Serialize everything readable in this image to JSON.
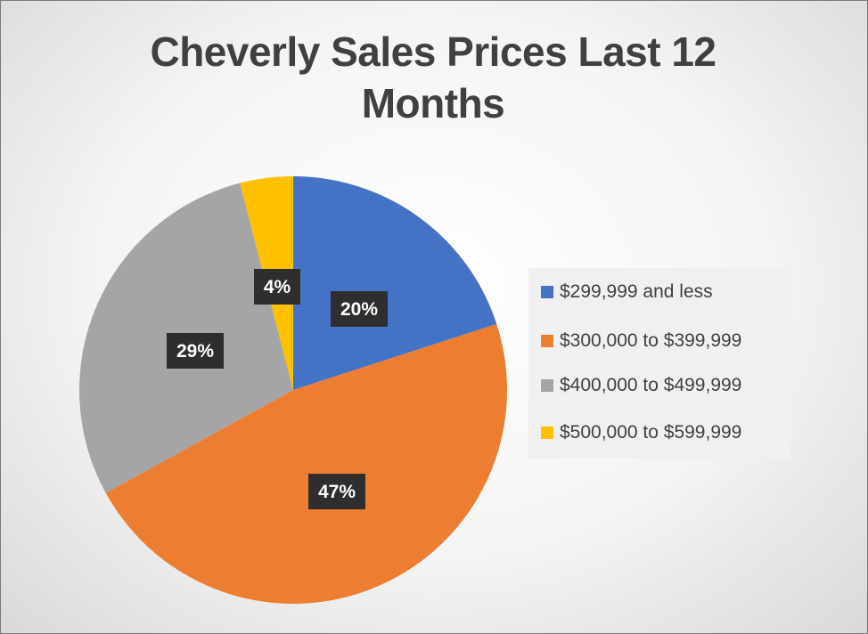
{
  "chart_data": {
    "type": "pie",
    "title": "Cheverly Sales Prices Last 12 Months",
    "categories": [
      "$299,999 and less",
      "$300,000 to $399,999",
      "$400,000 to $499,999",
      "$500,000 to $599,999"
    ],
    "values": [
      20,
      47,
      29,
      4
    ],
    "data_labels": [
      "20%",
      "47%",
      "29%",
      "4%"
    ],
    "colors": [
      "#4472C4",
      "#ED7D31",
      "#A5A5A5",
      "#FFC000"
    ],
    "legend_position": "right"
  }
}
